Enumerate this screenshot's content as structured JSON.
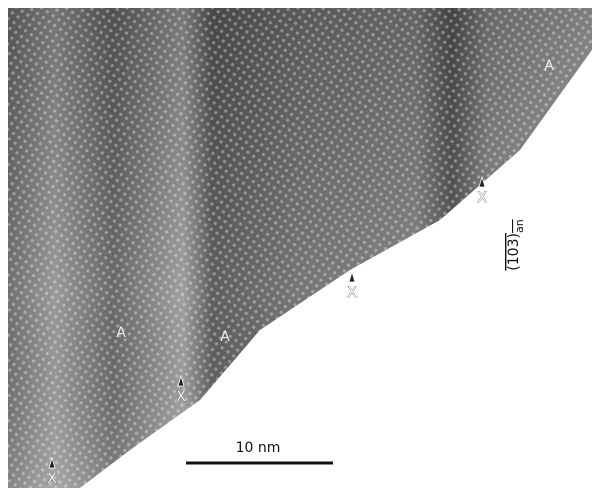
{
  "markers": {
    "a_labels": [
      "A",
      "A",
      "A"
    ],
    "x_labels": [
      "X",
      "X",
      "X",
      "X"
    ]
  },
  "scale_bar": "10 nm",
  "plane_label": {
    "indices": "(103)",
    "subscript": "an"
  }
}
